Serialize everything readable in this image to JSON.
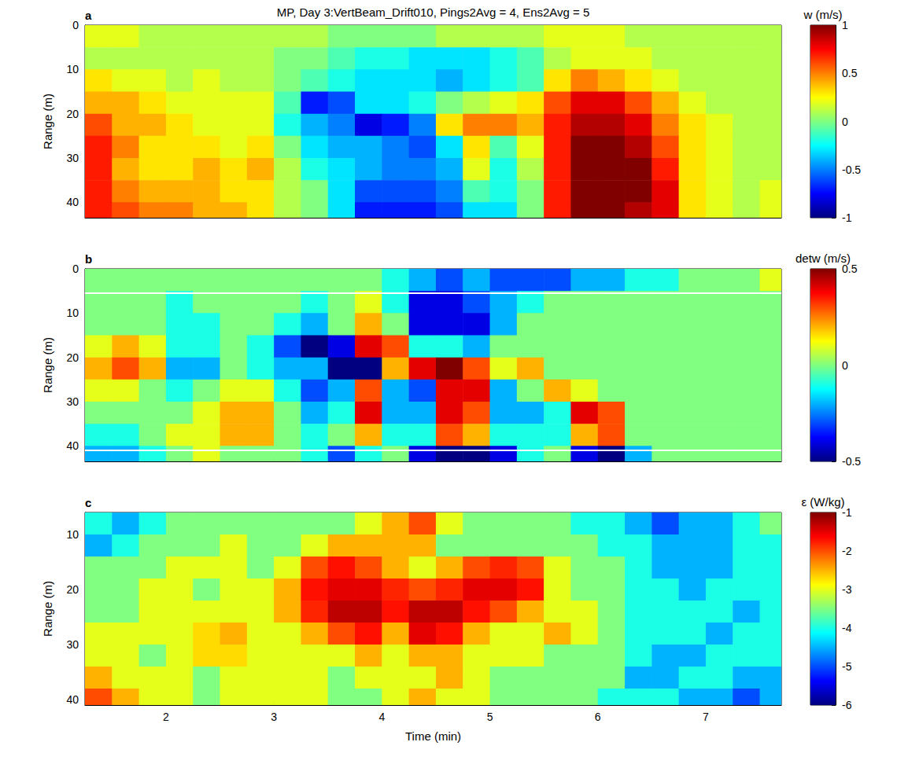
{
  "chart_data": [
    {
      "type": "heatmap",
      "title": "MP, Day 3:VertBeam_Drift010, Pings2Avg = 4, Ens2Avg = 5",
      "panel_label": "a",
      "y_label": "Range (m)",
      "tick_labels": "y",
      "xlim": [
        1.25,
        7.7
      ],
      "xticks": [
        2,
        3,
        4,
        5,
        6,
        7
      ],
      "ylim": [
        0,
        43.5
      ],
      "yticks": [
        0,
        10,
        20,
        30,
        40
      ],
      "x_edges": [
        1.25,
        1.5,
        1.75,
        2,
        2.25,
        2.5,
        2.75,
        3,
        3.25,
        3.5,
        3.75,
        4,
        4.25,
        4.5,
        4.75,
        5,
        5.25,
        5.5,
        5.75,
        6,
        6.25,
        6.5,
        6.75,
        7,
        7.25,
        7.5,
        7.7
      ],
      "y_edges": [
        0,
        5,
        10,
        15,
        20,
        25,
        30,
        35,
        40,
        43.5
      ],
      "cells": [
        [
          0.2,
          0.2,
          0.1,
          0.1,
          0.1,
          0.1,
          0.1,
          0.1,
          0.1,
          0.0,
          0.0,
          0.0,
          0.0,
          0.1,
          0.1,
          0.1,
          0.1,
          0.2,
          0.2,
          0.2,
          0.1,
          0.1,
          0.1,
          0.1,
          0.1,
          0.1
        ],
        [
          0.1,
          0.1,
          0.1,
          0.1,
          0.1,
          0.1,
          0.1,
          0.0,
          0.0,
          -0.1,
          -0.2,
          -0.2,
          -0.3,
          -0.3,
          -0.3,
          -0.2,
          -0.1,
          0.1,
          0.2,
          0.2,
          0.2,
          0.1,
          0.1,
          0.1,
          0.1,
          0.1
        ],
        [
          0.3,
          0.2,
          0.2,
          0.1,
          0.2,
          0.1,
          0.1,
          0.0,
          -0.1,
          -0.2,
          -0.3,
          -0.3,
          -0.3,
          -0.4,
          -0.3,
          -0.2,
          -0.1,
          0.3,
          0.5,
          0.4,
          0.3,
          0.2,
          0.1,
          0.1,
          0.1,
          0.1
        ],
        [
          0.4,
          0.4,
          0.3,
          0.2,
          0.2,
          0.2,
          0.2,
          -0.1,
          -0.7,
          -0.6,
          -0.3,
          -0.3,
          -0.2,
          0.0,
          0.1,
          0.2,
          0.3,
          0.6,
          0.8,
          0.8,
          0.6,
          0.4,
          0.2,
          0.1,
          0.1,
          0.1
        ],
        [
          0.6,
          0.4,
          0.4,
          0.3,
          0.2,
          0.2,
          0.2,
          -0.2,
          -0.4,
          -0.5,
          -0.8,
          -0.7,
          -0.5,
          0.3,
          0.5,
          0.5,
          0.4,
          0.7,
          0.9,
          0.9,
          0.8,
          0.5,
          0.3,
          0.2,
          0.1,
          0.1
        ],
        [
          0.7,
          0.5,
          0.3,
          0.3,
          0.3,
          0.2,
          0.3,
          0.0,
          -0.3,
          -0.4,
          -0.4,
          -0.5,
          -0.6,
          -0.3,
          0.3,
          -0.1,
          0.2,
          0.7,
          1.0,
          1.0,
          0.9,
          0.6,
          0.3,
          0.2,
          0.1,
          0.1
        ],
        [
          0.7,
          0.4,
          0.3,
          0.3,
          0.4,
          0.3,
          0.4,
          0.1,
          -0.2,
          -0.3,
          -0.4,
          -0.5,
          -0.5,
          -0.4,
          0.2,
          -0.2,
          0.1,
          0.7,
          1.0,
          1.0,
          1.0,
          0.7,
          0.3,
          0.2,
          0.1,
          0.1
        ],
        [
          0.7,
          0.5,
          0.4,
          0.4,
          0.4,
          0.3,
          0.3,
          0.1,
          0.0,
          -0.3,
          -0.6,
          -0.6,
          -0.6,
          -0.5,
          -0.1,
          -0.2,
          0.0,
          0.7,
          1.0,
          1.0,
          1.0,
          0.8,
          0.3,
          0.2,
          0.1,
          0.2
        ],
        [
          0.7,
          0.6,
          0.5,
          0.5,
          0.4,
          0.4,
          0.3,
          0.1,
          0.0,
          -0.3,
          -0.7,
          -0.7,
          -0.7,
          -0.6,
          -0.3,
          -0.3,
          0.0,
          0.7,
          1.0,
          1.0,
          0.9,
          0.8,
          0.3,
          0.2,
          0.1,
          0.2
        ]
      ],
      "colorbar": {
        "label": "w (m/s)",
        "range": [
          -1,
          1
        ],
        "ticks": [
          -1,
          -0.5,
          0,
          0.5,
          1
        ]
      }
    },
    {
      "type": "heatmap",
      "panel_label": "b",
      "y_label": "Range (m)",
      "tick_labels": "y",
      "xlim": [
        1.25,
        7.7
      ],
      "xticks": [
        2,
        3,
        4,
        5,
        6,
        7
      ],
      "ylim": [
        0,
        43.5
      ],
      "yticks": [
        0,
        10,
        20,
        30,
        40
      ],
      "x_edges": [
        1.25,
        1.5,
        1.75,
        2,
        2.25,
        2.5,
        2.75,
        3,
        3.25,
        3.5,
        3.75,
        4,
        4.25,
        4.5,
        4.75,
        5,
        5.25,
        5.5,
        5.75,
        6,
        6.25,
        6.5,
        6.75,
        7,
        7.25,
        7.5,
        7.7
      ],
      "y_edges": [
        0,
        5,
        10,
        15,
        20,
        25,
        30,
        35,
        40,
        43.5
      ],
      "cells": [
        [
          0.0,
          0.0,
          0.0,
          0.0,
          0.0,
          0.0,
          0.0,
          0.0,
          0.0,
          0.0,
          0.0,
          -0.1,
          -0.2,
          -0.3,
          -0.2,
          -0.3,
          -0.3,
          -0.3,
          -0.2,
          -0.2,
          -0.1,
          -0.1,
          0.0,
          0.0,
          0.0,
          0.1
        ],
        [
          0.0,
          0.0,
          0.0,
          -0.1,
          0.0,
          0.0,
          0.0,
          0.0,
          -0.1,
          0.0,
          0.1,
          -0.1,
          -0.4,
          -0.4,
          -0.3,
          -0.2,
          -0.1,
          0.0,
          0.0,
          0.0,
          0.0,
          0.0,
          0.0,
          0.0,
          0.0,
          0.0
        ],
        [
          0.0,
          0.0,
          0.0,
          -0.1,
          -0.1,
          0.0,
          0.0,
          -0.1,
          -0.2,
          0.0,
          0.2,
          0.0,
          -0.4,
          -0.4,
          -0.4,
          -0.2,
          0.0,
          0.0,
          0.0,
          0.0,
          0.0,
          0.0,
          0.0,
          0.0,
          0.0,
          0.0
        ],
        [
          0.1,
          0.2,
          0.1,
          -0.1,
          -0.1,
          0.0,
          -0.1,
          -0.3,
          -0.5,
          -0.4,
          0.4,
          0.3,
          -0.1,
          -0.1,
          -0.2,
          0.0,
          0.0,
          0.0,
          0.0,
          0.0,
          0.0,
          0.0,
          0.0,
          0.0,
          0.0,
          0.0
        ],
        [
          0.2,
          0.3,
          0.2,
          -0.2,
          -0.2,
          0.0,
          -0.1,
          -0.2,
          -0.2,
          -0.5,
          -0.5,
          0.2,
          0.4,
          0.5,
          0.3,
          0.1,
          0.2,
          0.0,
          0.0,
          0.0,
          0.0,
          0.0,
          0.0,
          0.0,
          0.0,
          0.0
        ],
        [
          0.1,
          0.1,
          0.0,
          -0.1,
          0.0,
          0.1,
          0.1,
          -0.1,
          -0.3,
          -0.2,
          0.3,
          -0.2,
          -0.3,
          0.4,
          0.4,
          -0.2,
          0.0,
          0.2,
          0.1,
          0.0,
          0.0,
          0.0,
          0.0,
          0.0,
          0.0,
          0.0
        ],
        [
          0.0,
          0.0,
          0.0,
          0.0,
          0.1,
          0.2,
          0.2,
          0.0,
          -0.2,
          -0.1,
          0.4,
          -0.2,
          -0.2,
          0.4,
          0.3,
          -0.2,
          -0.2,
          -0.1,
          0.4,
          0.3,
          0.0,
          0.0,
          0.0,
          0.0,
          0.0,
          0.0
        ],
        [
          -0.1,
          -0.1,
          0.0,
          0.1,
          0.1,
          0.2,
          0.2,
          0.0,
          -0.1,
          0.0,
          0.2,
          -0.1,
          -0.1,
          0.3,
          0.2,
          -0.1,
          -0.1,
          -0.1,
          0.2,
          0.3,
          0.0,
          0.0,
          0.0,
          0.0,
          0.0,
          0.0
        ],
        [
          -0.2,
          -0.2,
          -0.1,
          0.0,
          0.1,
          0.0,
          0.0,
          0.0,
          -0.1,
          -0.3,
          -0.1,
          0.0,
          -0.4,
          -0.5,
          -0.5,
          -0.4,
          -0.1,
          0.0,
          -0.4,
          -0.5,
          -0.2,
          0.0,
          0.0,
          0.0,
          0.0,
          0.0
        ]
      ],
      "hlines": [
        5.5,
        41
      ],
      "colorbar": {
        "label": "detw (m/s)",
        "range": [
          -0.5,
          0.5
        ],
        "ticks": [
          -0.5,
          0,
          0.5
        ]
      }
    },
    {
      "type": "heatmap",
      "panel_label": "c",
      "y_label": "Range (m)",
      "x_label": "Time (min)",
      "xlim": [
        1.25,
        7.7
      ],
      "xticks": [
        2,
        3,
        4,
        5,
        6,
        7
      ],
      "ylim": [
        6,
        41
      ],
      "yticks": [
        10,
        20,
        30,
        40
      ],
      "x_edges": [
        1.25,
        1.5,
        1.75,
        2,
        2.25,
        2.5,
        2.75,
        3,
        3.25,
        3.5,
        3.75,
        4,
        4.25,
        4.5,
        4.75,
        5,
        5.25,
        5.5,
        5.75,
        6,
        6.25,
        6.5,
        6.75,
        7,
        7.25,
        7.5,
        7.7
      ],
      "y_edges": [
        6,
        10,
        14,
        18,
        22,
        26,
        30,
        34,
        38,
        41
      ],
      "cells": [
        [
          -4.0,
          -4.5,
          -4.0,
          -3.5,
          -3.5,
          -3.5,
          -3.5,
          -3.5,
          -3.5,
          -3.5,
          -3.0,
          -2.5,
          -2.0,
          -3.0,
          -3.5,
          -3.5,
          -3.5,
          -3.5,
          -4.0,
          -4.0,
          -4.5,
          -5.0,
          -4.5,
          -4.5,
          -4.0,
          -3.5
        ],
        [
          -4.5,
          -4.0,
          -3.5,
          -3.5,
          -3.5,
          -3.0,
          -3.5,
          -3.5,
          -3.0,
          -2.5,
          -2.5,
          -2.5,
          -2.5,
          -3.5,
          -3.5,
          -3.5,
          -3.5,
          -3.5,
          -3.5,
          -4.0,
          -4.0,
          -4.5,
          -4.5,
          -4.5,
          -4.0,
          -4.0
        ],
        [
          -3.5,
          -3.5,
          -3.5,
          -3.0,
          -3.0,
          -3.0,
          -3.5,
          -3.0,
          -2.0,
          -1.7,
          -2.0,
          -2.5,
          -3.0,
          -2.5,
          -2.0,
          -1.8,
          -2.0,
          -3.0,
          -3.5,
          -3.5,
          -4.0,
          -4.5,
          -4.5,
          -4.5,
          -4.0,
          -4.0
        ],
        [
          -3.5,
          -3.5,
          -3.0,
          -3.0,
          -3.5,
          -3.0,
          -3.0,
          -2.5,
          -1.7,
          -1.5,
          -1.5,
          -1.8,
          -2.0,
          -1.8,
          -1.5,
          -1.5,
          -1.7,
          -3.0,
          -3.5,
          -3.5,
          -4.0,
          -4.0,
          -4.5,
          -4.0,
          -4.0,
          -4.0
        ],
        [
          -3.5,
          -3.5,
          -3.0,
          -3.0,
          -3.0,
          -3.0,
          -3.0,
          -2.5,
          -1.8,
          -1.3,
          -1.3,
          -1.7,
          -1.3,
          -1.3,
          -1.7,
          -2.0,
          -2.5,
          -3.0,
          -3.0,
          -3.5,
          -4.0,
          -4.0,
          -4.0,
          -4.0,
          -4.5,
          -4.0
        ],
        [
          -3.0,
          -3.0,
          -3.0,
          -3.0,
          -2.7,
          -2.5,
          -3.0,
          -3.0,
          -2.5,
          -2.0,
          -1.7,
          -2.5,
          -1.5,
          -1.7,
          -2.5,
          -3.0,
          -3.0,
          -2.5,
          -3.0,
          -3.5,
          -4.0,
          -4.0,
          -4.0,
          -4.5,
          -4.0,
          -4.0
        ],
        [
          -3.0,
          -3.0,
          -3.5,
          -3.0,
          -2.7,
          -2.7,
          -3.0,
          -3.0,
          -3.0,
          -3.0,
          -2.5,
          -3.0,
          -2.5,
          -2.5,
          -3.0,
          -3.0,
          -3.0,
          -3.5,
          -3.5,
          -3.5,
          -4.0,
          -4.5,
          -4.5,
          -4.0,
          -4.0,
          -4.0
        ],
        [
          -2.5,
          -3.0,
          -3.0,
          -3.0,
          -3.5,
          -3.0,
          -3.0,
          -3.0,
          -3.0,
          -3.5,
          -3.0,
          -3.0,
          -3.0,
          -2.5,
          -3.0,
          -3.5,
          -3.5,
          -3.5,
          -3.5,
          -3.5,
          -4.5,
          -4.5,
          -4.0,
          -4.0,
          -4.5,
          -4.5
        ],
        [
          -2.0,
          -2.5,
          -3.0,
          -3.0,
          -3.5,
          -3.0,
          -3.0,
          -3.0,
          -3.0,
          -3.5,
          -3.5,
          -3.0,
          -2.5,
          -3.0,
          -3.0,
          -3.5,
          -3.5,
          -3.5,
          -3.5,
          -4.0,
          -4.0,
          -4.0,
          -4.5,
          -4.5,
          -5.0,
          -4.5
        ]
      ],
      "colorbar": {
        "label": "ε (W/kg)",
        "range": [
          -6,
          -1
        ],
        "ticks": [
          -1,
          -2,
          -3,
          -4,
          -5,
          -6
        ]
      }
    }
  ]
}
